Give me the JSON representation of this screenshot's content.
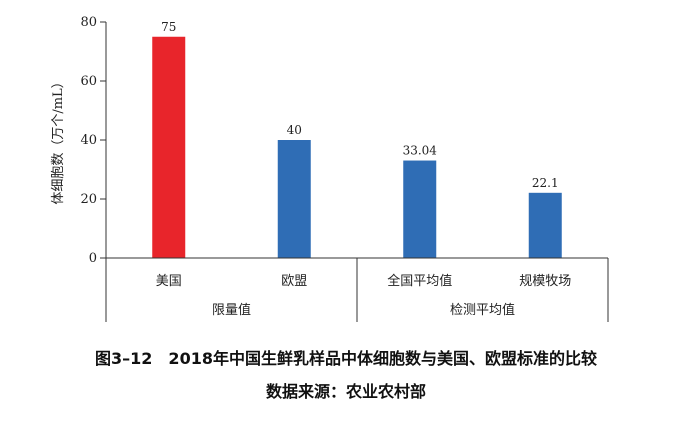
{
  "chart_data": {
    "type": "bar",
    "categories": [
      "美国",
      "欧盟",
      "全国平均值",
      "规模牧场"
    ],
    "values": [
      75,
      40,
      33.04,
      22.1
    ],
    "value_labels": [
      "75",
      "40",
      "33.04",
      "22.1"
    ],
    "groups": [
      {
        "label": "限量值",
        "categories": [
          "美国",
          "欧盟"
        ]
      },
      {
        "label": "检测平均值",
        "categories": [
          "全国平均值",
          "规模牧场"
        ]
      }
    ],
    "bar_colors": [
      "#e8252b",
      "#2f6db5",
      "#2f6db5",
      "#2f6db5"
    ],
    "ylabel": "体细胞数（万个/mL）",
    "ylim": [
      0,
      80
    ],
    "yticks": [
      0,
      20,
      40,
      60,
      80
    ],
    "grid": false
  },
  "caption": {
    "title": "图3–12　2018年中国生鲜乳样品中体细胞数与美国、欧盟标准的比较",
    "source": "数据来源：农业农村部"
  }
}
